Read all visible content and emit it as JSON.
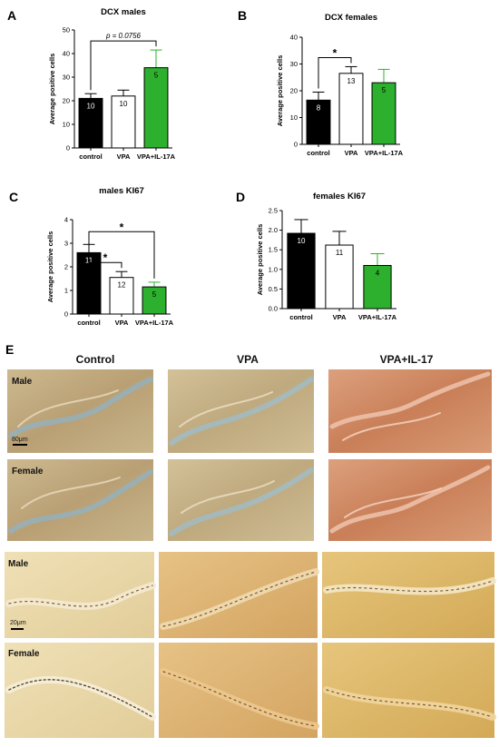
{
  "chart_data": [
    {
      "panel": "A",
      "type": "bar",
      "title": "DCX males",
      "ylabel": "Average positive cells",
      "ylim": [
        0,
        50
      ],
      "yticks": [
        "0",
        "10",
        "20",
        "30",
        "40",
        "50"
      ],
      "categories": [
        "control",
        "VPA",
        "VPA+IL-17A"
      ],
      "values": [
        21,
        22,
        34
      ],
      "errors": [
        2,
        2.5,
        7.5
      ],
      "n_labels": [
        "10",
        "10",
        "5"
      ],
      "colors": [
        "#000000",
        "#ffffff",
        "#2db02d"
      ],
      "annotations": [
        {
          "text": "p = 0.0756",
          "from": 0,
          "to": 2
        }
      ]
    },
    {
      "panel": "B",
      "type": "bar",
      "title": "DCX females",
      "ylabel": "Average positive cells",
      "ylim": [
        0,
        40
      ],
      "yticks": [
        "0",
        "10",
        "20",
        "30",
        "40"
      ],
      "categories": [
        "control",
        "VPA",
        "VPA+IL-17A"
      ],
      "values": [
        16.5,
        26.5,
        23
      ],
      "errors": [
        3,
        2.5,
        5
      ],
      "n_labels": [
        "8",
        "13",
        "5"
      ],
      "colors": [
        "#000000",
        "#ffffff",
        "#2db02d"
      ],
      "annotations": [
        {
          "text": "*",
          "from": 0,
          "to": 1
        }
      ]
    },
    {
      "panel": "C",
      "type": "bar",
      "title": "males KI67",
      "ylabel": "Average positive cells",
      "ylim": [
        0,
        4
      ],
      "yticks": [
        "0",
        "1",
        "2",
        "3",
        "4"
      ],
      "categories": [
        "control",
        "VPA",
        "VPA+IL-17A"
      ],
      "values": [
        2.6,
        1.55,
        1.15
      ],
      "errors": [
        0.35,
        0.25,
        0.2
      ],
      "n_labels": [
        "11",
        "12",
        "5"
      ],
      "colors": [
        "#000000",
        "#ffffff",
        "#2db02d"
      ],
      "annotations": [
        {
          "text": "*",
          "from": 0,
          "to": 1
        },
        {
          "text": "*",
          "from": 0,
          "to": 2
        }
      ]
    },
    {
      "panel": "D",
      "type": "bar",
      "title": "females KI67",
      "ylabel": "Average positive cells",
      "ylim": [
        0,
        2.5
      ],
      "yticks": [
        "0.0",
        "0.5",
        "1.0",
        "1.5",
        "2.0",
        "2.5"
      ],
      "categories": [
        "control",
        "VPA",
        "VPA+IL-17A"
      ],
      "values": [
        1.92,
        1.62,
        1.1
      ],
      "errors": [
        0.35,
        0.35,
        0.3
      ],
      "n_labels": [
        "10",
        "11",
        "4"
      ],
      "colors": [
        "#000000",
        "#ffffff",
        "#2db02d"
      ],
      "annotations": []
    }
  ],
  "panel_e": {
    "letter": "E",
    "columns": [
      "Control",
      "VPA",
      "VPA+IL-17"
    ],
    "rows": [
      "Male",
      "Female",
      "Male",
      "Female"
    ],
    "scale_bars": [
      "80μm",
      "20μm"
    ],
    "tissue_colors": {
      "control": "#bfa67d",
      "vpa": "#c6b088",
      "il17": "#cf8d68",
      "zoom_control": "#e7d6a9",
      "zoom_vpa": "#dcb173",
      "zoom_il17": "#dcb369"
    }
  }
}
